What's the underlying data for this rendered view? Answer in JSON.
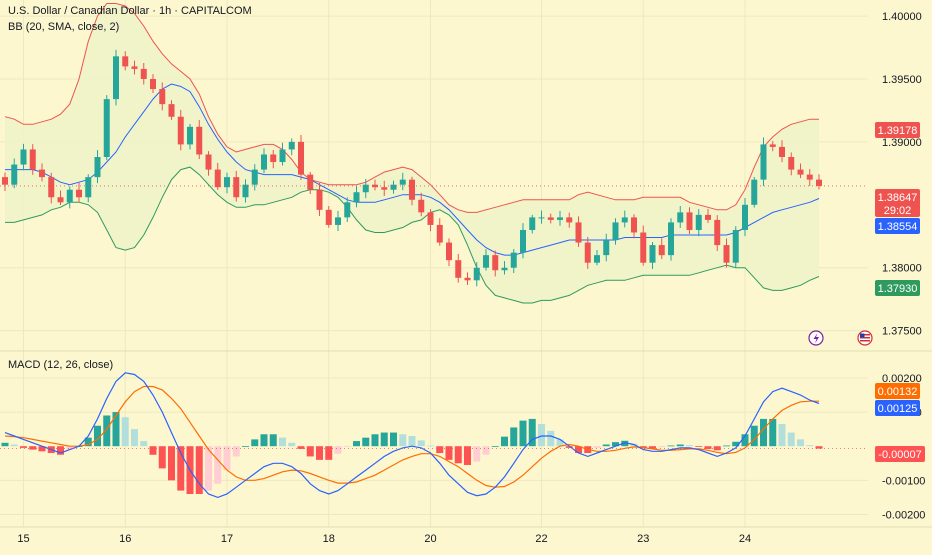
{
  "header": {
    "title": "U.S. Dollar / Canadian Dollar · 1h · CAPITALCOM",
    "bb_legend": "BB (20, SMA, close, 2)",
    "macd_legend": "MACD (12, 26, close)"
  },
  "colors": {
    "background": "#fdf7cf",
    "bull": "#26a69a",
    "bear": "#ef5350",
    "bb_upper": "#ef5350",
    "bb_basis": "#2962ff",
    "bb_lower": "#2e9a5e",
    "bb_fill": "#eef3c8",
    "macd_line": "#2962ff",
    "signal_line": "#ff6d00",
    "hist_pos_strong": "#26a69a",
    "hist_pos_weak": "#b2dfdb",
    "hist_neg_strong": "#ff5252",
    "hist_neg_weak": "#ffcdd2"
  },
  "price_badges": {
    "upper": "1.39178",
    "last": "1.38647",
    "countdown": "29:02",
    "basis": "1.38554",
    "lower": "1.37930"
  },
  "macd_badges": {
    "signal": "0.00132",
    "macd": "0.00125",
    "hist": "-0.00007"
  },
  "icons": {
    "lightning": "lightning-icon",
    "flag": "us-flag-icon"
  },
  "chart_data": [
    {
      "type": "line",
      "subtype": "candlestick",
      "title": "U.S. Dollar / Canadian Dollar · 1h · CAPITALCOM",
      "ylim": [
        1.3737,
        1.4008
      ],
      "y_ticks": [
        "1.40000",
        "1.39500",
        "1.39000",
        "1.38000",
        "1.37500"
      ],
      "y_tick_values": [
        1.4,
        1.395,
        1.39,
        1.38,
        1.375
      ],
      "x_ticks": [
        "15",
        "16",
        "17",
        "18",
        "20",
        "22",
        "23",
        "24"
      ],
      "x_tick_positions": [
        2,
        13,
        24,
        35,
        46,
        58,
        69,
        80
      ],
      "candles_start": 0,
      "candles": [
        1.3866,
        1.3882,
        1.3894,
        1.3878,
        1.3872,
        1.3856,
        1.3852,
        1.3862,
        1.3856,
        1.3872,
        1.3888,
        1.3934,
        1.3968,
        1.396,
        1.3958,
        1.395,
        1.3942,
        1.393,
        1.392,
        1.3898,
        1.3912,
        1.389,
        1.3878,
        1.3864,
        1.3872,
        1.3856,
        1.3866,
        1.3878,
        1.389,
        1.3884,
        1.3894,
        1.39,
        1.3874,
        1.3862,
        1.3846,
        1.3834,
        1.384,
        1.3852,
        1.386,
        1.3866,
        1.3864,
        1.3862,
        1.3866,
        1.387,
        1.3854,
        1.3844,
        1.3834,
        1.382,
        1.3806,
        1.3792,
        1.379,
        1.38,
        1.381,
        1.3798,
        1.38,
        1.3812,
        1.383,
        1.384,
        1.384,
        1.3838,
        1.384,
        1.3836,
        1.382,
        1.3804,
        1.381,
        1.3822,
        1.3836,
        1.384,
        1.3828,
        1.3804,
        1.3818,
        1.381,
        1.3836,
        1.3844,
        1.383,
        1.3842,
        1.3838,
        1.3818,
        1.3804,
        1.383,
        1.385,
        1.387,
        1.3898,
        1.3896,
        1.3888,
        1.3878,
        1.3874,
        1.387,
        1.3865
      ],
      "series": [
        {
          "name": "BB (20, SMA, close, 2)",
          "role": "upper",
          "values": [
            1.392,
            1.3918,
            1.3914,
            1.3914,
            1.3916,
            1.3918,
            1.3922,
            1.393,
            1.395,
            1.398,
            1.4,
            1.401,
            1.401,
            1.4008,
            1.4002,
            1.3992,
            1.398,
            1.397,
            1.3962,
            1.3956,
            1.395,
            1.3938,
            1.392,
            1.3906,
            1.3896,
            1.3892,
            1.3894,
            1.3896,
            1.3898,
            1.3898,
            1.3894,
            1.3886,
            1.3876,
            1.387,
            1.3868,
            1.3866,
            1.3866,
            1.3866,
            1.3866,
            1.3868,
            1.3872,
            1.3876,
            1.3878,
            1.388,
            1.3878,
            1.3872,
            1.3866,
            1.3858,
            1.385,
            1.3846,
            1.3844,
            1.3844,
            1.3846,
            1.3848,
            1.385,
            1.3852,
            1.3854,
            1.3854,
            1.3854,
            1.3854,
            1.3854,
            1.3854,
            1.3858,
            1.386,
            1.3858,
            1.3856,
            1.3854,
            1.3854,
            1.3854,
            1.3856,
            1.3856,
            1.3856,
            1.3856,
            1.3856,
            1.3852,
            1.385,
            1.3848,
            1.3846,
            1.3846,
            1.385,
            1.3862,
            1.388,
            1.3896,
            1.3904,
            1.391,
            1.3914,
            1.3916,
            1.3918,
            1.3918
          ]
        },
        {
          "name": "BB (20, SMA, close, 2)",
          "role": "basis",
          "values": [
            1.3878,
            1.3878,
            1.3878,
            1.3878,
            1.3876,
            1.3872,
            1.3868,
            1.3866,
            1.3868,
            1.387,
            1.3876,
            1.3884,
            1.3892,
            1.3904,
            1.3914,
            1.3924,
            1.3934,
            1.3942,
            1.3946,
            1.3944,
            1.394,
            1.3928,
            1.3914,
            1.3902,
            1.3892,
            1.3884,
            1.3878,
            1.3876,
            1.3874,
            1.3874,
            1.3874,
            1.3874,
            1.3872,
            1.387,
            1.3866,
            1.3862,
            1.3858,
            1.3854,
            1.3852,
            1.3852,
            1.3852,
            1.3854,
            1.3856,
            1.3858,
            1.3858,
            1.3858,
            1.3856,
            1.3852,
            1.3846,
            1.3838,
            1.383,
            1.3822,
            1.3816,
            1.3812,
            1.381,
            1.381,
            1.3812,
            1.3814,
            1.3816,
            1.3818,
            1.382,
            1.3822,
            1.3822,
            1.3822,
            1.3822,
            1.3822,
            1.3822,
            1.3824,
            1.3824,
            1.3824,
            1.3824,
            1.3824,
            1.3826,
            1.3826,
            1.3826,
            1.3826,
            1.3826,
            1.3826,
            1.3826,
            1.3828,
            1.3832,
            1.3836,
            1.384,
            1.3844,
            1.3846,
            1.3848,
            1.385,
            1.3852,
            1.3855
          ]
        },
        {
          "name": "BB (20, SMA, close, 2)",
          "role": "lower",
          "values": [
            1.3836,
            1.3836,
            1.3838,
            1.384,
            1.3842,
            1.3846,
            1.3848,
            1.3852,
            1.3852,
            1.385,
            1.3844,
            1.383,
            1.3816,
            1.3814,
            1.3816,
            1.3826,
            1.384,
            1.3856,
            1.387,
            1.3878,
            1.388,
            1.3874,
            1.3866,
            1.3858,
            1.3852,
            1.3848,
            1.3848,
            1.385,
            1.385,
            1.3852,
            1.3854,
            1.3856,
            1.386,
            1.3862,
            1.3862,
            1.386,
            1.3856,
            1.3848,
            1.3838,
            1.383,
            1.3828,
            1.3828,
            1.383,
            1.3832,
            1.3836,
            1.3838,
            1.3844,
            1.3846,
            1.3842,
            1.3834,
            1.3818,
            1.38,
            1.3786,
            1.3778,
            1.3776,
            1.3774,
            1.3772,
            1.3772,
            1.3774,
            1.3774,
            1.3776,
            1.3778,
            1.3782,
            1.3786,
            1.3788,
            1.379,
            1.379,
            1.379,
            1.3792,
            1.3794,
            1.3794,
            1.3794,
            1.3794,
            1.3794,
            1.3794,
            1.3796,
            1.3798,
            1.38,
            1.3802,
            1.38,
            1.38,
            1.3792,
            1.3784,
            1.3782,
            1.3782,
            1.3784,
            1.3786,
            1.379,
            1.3793
          ]
        }
      ],
      "gridlines": true
    },
    {
      "type": "line",
      "title": "MACD (12, 26, close)",
      "ylim": [
        -0.00225,
        0.00235
      ],
      "y_ticks": [
        "0.00200",
        "0.00100",
        "-0.00100",
        "-0.00200"
      ],
      "y_tick_values": [
        0.002,
        0.001,
        -0.001,
        -0.002
      ],
      "series": [
        {
          "name": "MACD",
          "values": [
            0.0004,
            0.0003,
            0.0002,
            0.0001,
            0.0,
            -0.0001,
            -0.0002,
            -0.0001,
            0.0,
            0.0003,
            0.0008,
            0.0014,
            0.0019,
            0.00215,
            0.0021,
            0.0019,
            0.0015,
            0.001,
            0.0004,
            -0.0002,
            -0.0007,
            -0.0011,
            -0.0014,
            -0.0015,
            -0.0014,
            -0.0012,
            -0.001,
            -0.0008,
            -0.0006,
            -0.0005,
            -0.0005,
            -0.0006,
            -0.0008,
            -0.0011,
            -0.0013,
            -0.0014,
            -0.0013,
            -0.0011,
            -0.0009,
            -0.0007,
            -0.0005,
            -0.0003,
            -0.00015,
            -5e-05,
            0.0,
            -5e-05,
            -0.0002,
            -0.0005,
            -0.00085,
            -0.0011,
            -0.00135,
            -0.00145,
            -0.0014,
            -0.0012,
            -0.0009,
            -0.0005,
            -0.0001,
            0.0002,
            0.0003,
            0.0003,
            0.0002,
            0.0,
            -0.0002,
            -0.0003,
            -0.0002,
            -0.0001,
            0.0,
            0.0001,
            5e-05,
            -0.0001,
            -0.00015,
            -0.00015,
            -0.0001,
            -5e-05,
            -5e-05,
            -0.0001,
            -0.0002,
            -0.0003,
            -0.0002,
            -5e-05,
            0.0003,
            0.0008,
            0.0013,
            0.0016,
            0.0017,
            0.0016,
            0.0015,
            0.00135,
            0.00125
          ]
        },
        {
          "name": "Signal",
          "values": [
            0.0003,
            0.00028,
            0.00025,
            0.0002,
            0.00015,
            0.0001,
            5e-05,
            0.0,
            0.0,
            5e-05,
            0.0002,
            0.0005,
            0.0009,
            0.0013,
            0.0016,
            0.00175,
            0.00175,
            0.00165,
            0.0014,
            0.0011,
            0.0007,
            0.0003,
            -0.0001,
            -0.0004,
            -0.0007,
            -0.0009,
            -0.001,
            -0.001,
            -0.00095,
            -0.00085,
            -0.00075,
            -0.0007,
            -0.00072,
            -0.0008,
            -0.0009,
            -0.001,
            -0.00108,
            -0.00108,
            -0.00105,
            -0.00095,
            -0.00085,
            -0.0007,
            -0.00055,
            -0.0004,
            -0.0003,
            -0.00022,
            -0.00022,
            -0.0003,
            -0.00045,
            -0.0006,
            -0.0008,
            -0.001,
            -0.00115,
            -0.0012,
            -0.00118,
            -0.00105,
            -0.00085,
            -0.0006,
            -0.00035,
            -0.00015,
            0.0,
            5e-05,
            0.0,
            -0.0001,
            -0.00015,
            -0.00015,
            -0.00012,
            -6e-05,
            -2e-05,
            -4e-05,
            -8e-05,
            -0.00012,
            -0.00012,
            -0.0001,
            -8e-05,
            -8e-05,
            -0.00012,
            -0.00018,
            -0.00022,
            -0.00018,
            -5e-05,
            0.0002,
            0.0005,
            0.0008,
            0.00105,
            0.0012,
            0.0013,
            0.00132,
            0.00132
          ]
        },
        {
          "name": "Histogram",
          "values": [
            0.0001,
            5e-05,
            -5e-05,
            -0.0001,
            -0.00015,
            -0.0002,
            -0.00025,
            -0.0001,
            0.0,
            0.00025,
            0.0006,
            0.0009,
            0.001,
            0.00085,
            0.0005,
            0.00015,
            -0.00025,
            -0.00065,
            -0.001,
            -0.0013,
            -0.0014,
            -0.0014,
            -0.0013,
            -0.0011,
            -0.0007,
            -0.0003,
            0.0,
            0.0002,
            0.00035,
            0.00035,
            0.00025,
            0.0001,
            -8e-05,
            -0.0003,
            -0.0004,
            -0.0004,
            -0.00022,
            -2e-05,
            0.00015,
            0.00025,
            0.00035,
            0.0004,
            0.0004,
            0.00035,
            0.0003,
            0.00017,
            2e-05,
            -0.0002,
            -0.0004,
            -0.0005,
            -0.00055,
            -0.00045,
            -0.00025,
            0.0,
            0.00028,
            0.00055,
            0.00075,
            0.0008,
            0.00065,
            0.00045,
            0.0002,
            -5e-05,
            -0.0002,
            -0.0002,
            -5e-05,
            5e-05,
            0.00012,
            0.00016,
            7e-05,
            -6e-05,
            -7e-05,
            -3e-05,
            2e-05,
            5e-05,
            3e-05,
            -2e-05,
            -8e-05,
            -0.00012,
            2e-05,
            0.00013,
            0.00035,
            0.0006,
            0.0008,
            0.0008,
            0.00065,
            0.0004,
            0.0002,
            3e-05,
            -7e-05
          ]
        }
      ],
      "gridlines": true
    }
  ]
}
